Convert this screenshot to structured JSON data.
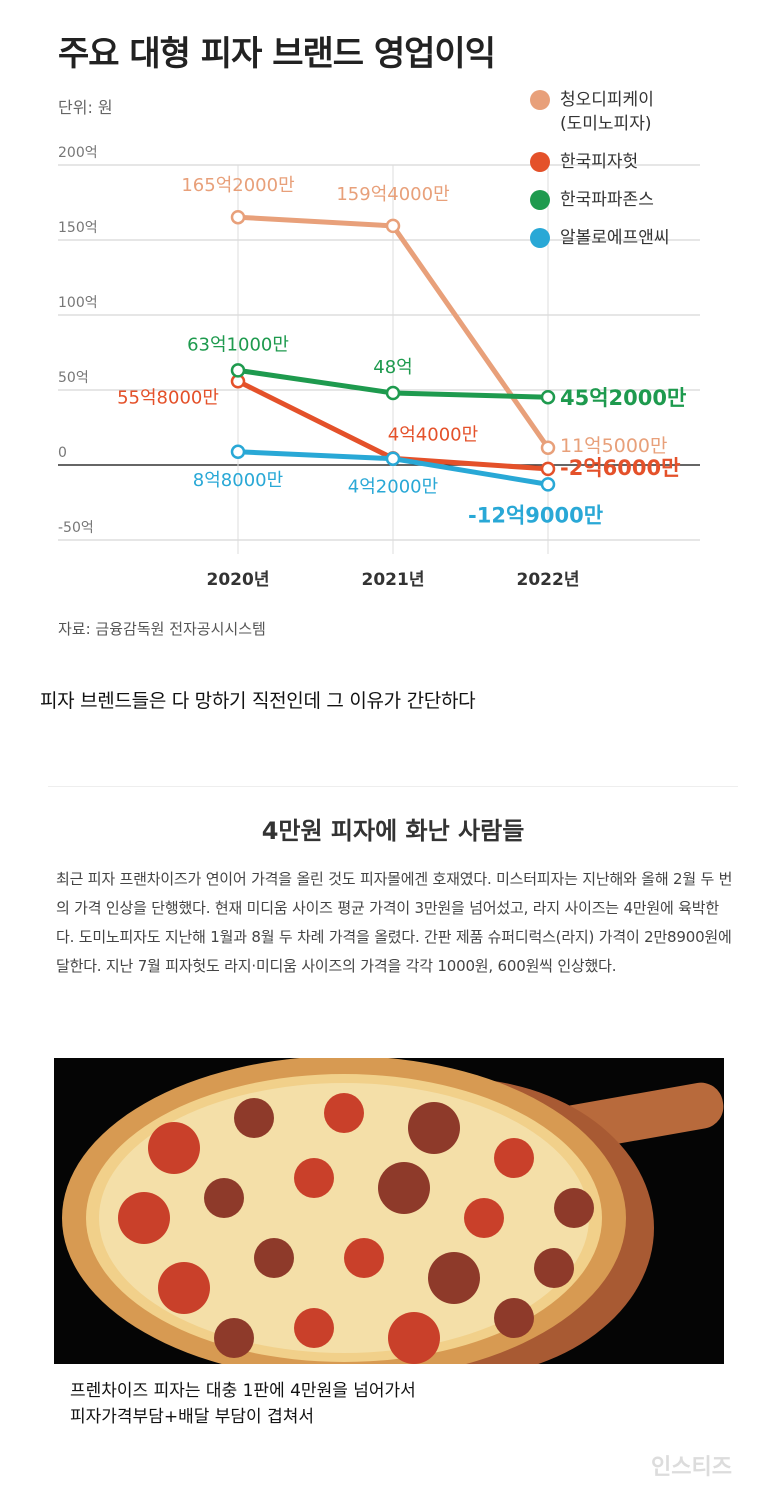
{
  "chart_data": {
    "type": "line",
    "title": "주요 대형 피자 브랜드 영업이익",
    "unit_label": "단위: 원",
    "source": "자료: 금융감독원 전자공시시스템",
    "x": [
      "2020년",
      "2021년",
      "2022년"
    ],
    "y_ticks": [
      "200억",
      "150억",
      "100억",
      "50억",
      "0",
      "-50억"
    ],
    "y_tick_values": [
      200,
      150,
      100,
      50,
      0,
      -50
    ],
    "ylim": [
      -50,
      200
    ],
    "y_unit": "억원",
    "grid": true,
    "legend_position": "top-right",
    "series": [
      {
        "name": "청오디피케이\n(도미노피자)",
        "color": "#e8a07a",
        "values": [
          165.2,
          159.4,
          11.5
        ],
        "labels": [
          "165억2000만",
          "159억4000만",
          "11억5000만"
        ]
      },
      {
        "name": "한국피자헛",
        "color": "#e4512a",
        "values": [
          55.8,
          4.4,
          -2.6
        ],
        "labels": [
          "55억8000만",
          "4억4000만",
          "-2억6000만"
        ]
      },
      {
        "name": "한국파파존스",
        "color": "#1e9a4e",
        "values": [
          63.1,
          48,
          45.2
        ],
        "labels": [
          "63억1000만",
          "48억",
          "45억2000만"
        ]
      },
      {
        "name": "알볼로에프앤씨",
        "color": "#29a8d6",
        "values": [
          8.8,
          4.2,
          -12.9
        ],
        "labels": [
          "8억8000만",
          "4억2000만",
          "-12억9000만"
        ]
      }
    ]
  },
  "caption1": "피자 브렌드들은 다 망하기 직전인데 그 이유가 간단하다",
  "article": {
    "title": "4만원 피자에 화난 사람들",
    "body": "최근 피자 프랜차이즈가 연이어 가격을 올린 것도 피자몰에겐 호재였다. 미스터피자는 지난해와 올해 2월 두 번의 가격 인상을 단행했다. 현재 미디움 사이즈 평균 가격이 3만원을 넘어섰고, 라지 사이즈는 4만원에 육박한다. 도미노피자도 지난해 1월과 8월 두 차례 가격을 올렸다. 간판 제품 슈퍼디럭스(라지) 가격이 2만8900원에 달한다. 지난 7월 피자헛도 라지·미디움 사이즈의 가격을 각각 1000원, 600원씩 인상했다."
  },
  "caption2_line1": "프렌차이즈 피자는 대충 1판에 4만원을 넘어가서",
  "caption2_line2": "피자가격부담+배달 부담이 겹쳐서",
  "watermark": "인스티즈"
}
